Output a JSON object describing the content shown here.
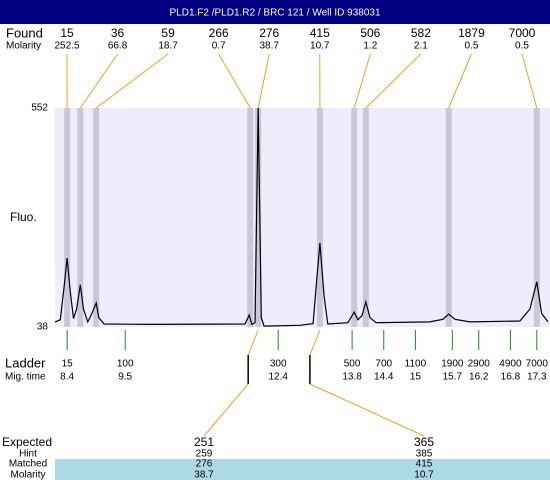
{
  "chart_data": {
    "type": "line",
    "title": "PLD1.F2 /PLD1.R2 / BRC 121 / Well ID 938031",
    "y_label": "Fluo.",
    "found_label": "Found",
    "molarity_label": "Molarity",
    "peaks": {
      "mig_time": [
        8.4,
        8.65,
        8.95,
        11.87,
        12.02,
        13.19,
        13.84,
        14.06,
        15.63,
        17.3
      ],
      "size": [
        15,
        36,
        59,
        266,
        276,
        415,
        506,
        582,
        1879,
        7000
      ],
      "molarity": [
        252.5,
        66.8,
        18.7,
        0.7,
        38.7,
        10.7,
        1.2,
        2.1,
        0.5,
        0.5
      ]
    },
    "x": [
      8.17,
      8.27,
      8.34,
      8.4,
      8.46,
      8.52,
      8.58,
      8.65,
      8.71,
      8.79,
      8.84,
      8.95,
      9.0,
      9.1,
      9.97,
      11.77,
      11.85,
      11.9,
      11.96,
      12.02,
      12.08,
      12.13,
      12.81,
      13.06,
      13.11,
      13.19,
      13.27,
      13.34,
      13.72,
      13.84,
      13.91,
      13.99,
      14.06,
      14.14,
      14.25,
      15.27,
      15.52,
      15.63,
      15.75,
      16.03,
      16.98,
      17.17,
      17.3,
      17.39,
      17.51
    ],
    "values": [
      50,
      55,
      130,
      200,
      120,
      58,
      80,
      137,
      80,
      50,
      62,
      94,
      60,
      45,
      44,
      45,
      66,
      44,
      48,
      552,
      60,
      40,
      42,
      46,
      120,
      235,
      110,
      45,
      48,
      73,
      55,
      65,
      97,
      60,
      48,
      50,
      56,
      68,
      56,
      50,
      52,
      80,
      144,
      70,
      50
    ],
    "color": "#000000",
    "xlim": [
      8.17,
      17.55
    ],
    "ylim": [
      38,
      552
    ],
    "yticks": [
      38,
      552
    ],
    "ladder": {
      "label": "Ladder",
      "time_label": "Mig. time",
      "sizes": [
        15,
        100,
        300,
        500,
        700,
        1100,
        1900,
        2900,
        4900,
        7000
      ],
      "mig_time": [
        8.4,
        9.5,
        12.4,
        13.8,
        14.4,
        15,
        15.7,
        16.2,
        16.8,
        17.3
      ]
    },
    "expected": {
      "labels": [
        "Expected",
        "Hint",
        "Matched",
        "Molarity"
      ],
      "expected": [
        251,
        365
      ],
      "hint": [
        259,
        385
      ],
      "matched": [
        276,
        415
      ],
      "molarity": [
        38.7,
        10.7
      ]
    }
  }
}
